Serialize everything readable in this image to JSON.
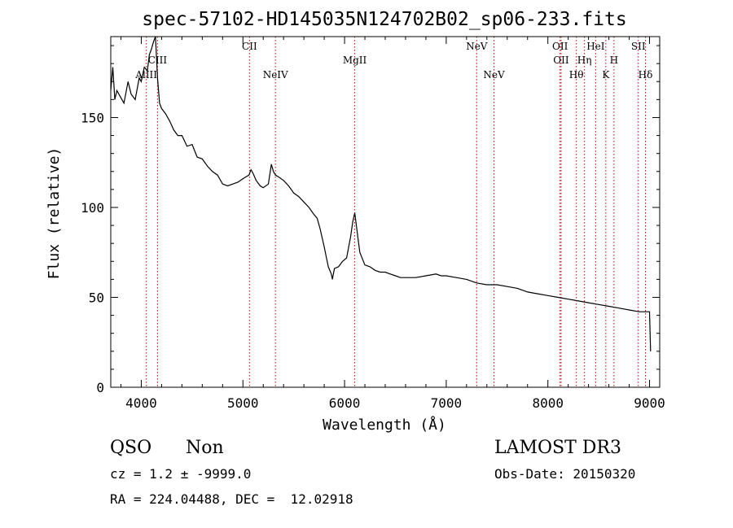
{
  "chart_data": {
    "type": "line",
    "title": "spec-57102-HD145035N124702B02_sp06-233.fits",
    "xlabel": "Wavelength (Å)",
    "ylabel": "Flux (relative)",
    "xlim": [
      3700,
      9100
    ],
    "ylim": [
      0,
      195
    ],
    "x_ticks": [
      4000,
      5000,
      6000,
      7000,
      8000,
      9000
    ],
    "x_tick_labels": [
      "4000",
      "5000",
      "6000",
      "7000",
      "8000",
      "9000"
    ],
    "y_ticks": [
      0,
      50,
      100,
      150
    ],
    "y_tick_labels": [
      "0",
      "50",
      "100",
      "150"
    ],
    "grid": false,
    "series": [
      {
        "name": "spectrum",
        "x": [
          3700,
          3720,
          3740,
          3760,
          3790,
          3830,
          3870,
          3900,
          3940,
          3980,
          4000,
          4030,
          4060,
          4080,
          4100,
          4120,
          4140,
          4160,
          4180,
          4200,
          4240,
          4280,
          4320,
          4360,
          4400,
          4450,
          4500,
          4550,
          4600,
          4650,
          4700,
          4750,
          4800,
          4850,
          4900,
          4950,
          5000,
          5030,
          5060,
          5080,
          5100,
          5130,
          5170,
          5200,
          5250,
          5280,
          5300,
          5320,
          5350,
          5400,
          5450,
          5500,
          5550,
          5600,
          5650,
          5700,
          5730,
          5760,
          5800,
          5840,
          5870,
          5880,
          5900,
          5940,
          5980,
          6020,
          6060,
          6080,
          6100,
          6120,
          6150,
          6200,
          6250,
          6300,
          6350,
          6400,
          6450,
          6500,
          6550,
          6600,
          6700,
          6800,
          6900,
          6950,
          7000,
          7100,
          7200,
          7300,
          7400,
          7500,
          7600,
          7700,
          7800,
          7900,
          8000,
          8100,
          8200,
          8300,
          8400,
          8500,
          8600,
          8700,
          8800,
          8900,
          8950,
          9000,
          9010
        ],
        "y": [
          165,
          178,
          160,
          165,
          162,
          158,
          170,
          163,
          160,
          172,
          170,
          178,
          176,
          185,
          188,
          192,
          195,
          172,
          158,
          155,
          152,
          148,
          143,
          140,
          140,
          134,
          135,
          128,
          127,
          123,
          120,
          118,
          113,
          112,
          113,
          114,
          116,
          117,
          118,
          121,
          119,
          115,
          112,
          111,
          113,
          124,
          120,
          118,
          117,
          115,
          112,
          108,
          106,
          103,
          100,
          96,
          94,
          88,
          78,
          67,
          63,
          60,
          66,
          67,
          70,
          72,
          84,
          92,
          97,
          88,
          75,
          68,
          67,
          65,
          64,
          64,
          63,
          62,
          61,
          61,
          61,
          62,
          63,
          62,
          62,
          61,
          60,
          58,
          57,
          57,
          56,
          55,
          53,
          52,
          51,
          50,
          49,
          48,
          47,
          46,
          45,
          44,
          43,
          42,
          42,
          42,
          20
        ]
      }
    ],
    "emission_lines": [
      {
        "label": "AlIII",
        "x": 4050,
        "row": 3
      },
      {
        "label": "CIII",
        "x": 4160,
        "row": 2
      },
      {
        "label": "CII",
        "x": 5065,
        "row": 1
      },
      {
        "label": "NeIV",
        "x": 5320,
        "row": 3
      },
      {
        "label": "MgII",
        "x": 6100,
        "row": 2
      },
      {
        "label": "NeV",
        "x": 7300,
        "row": 1
      },
      {
        "label": "NeV",
        "x": 7470,
        "row": 3
      },
      {
        "label": "OII",
        "x": 8120,
        "row": 1
      },
      {
        "label": "OII",
        "x": 8130,
        "row": 2
      },
      {
        "label": "Hθ",
        "x": 8280,
        "row": 3
      },
      {
        "label": "Hη",
        "x": 8360,
        "row": 2
      },
      {
        "label": "HeI",
        "x": 8470,
        "row": 1
      },
      {
        "label": "K",
        "x": 8570,
        "row": 3
      },
      {
        "label": "H",
        "x": 8650,
        "row": 2
      },
      {
        "label": "SII",
        "x": 8890,
        "row": 1
      },
      {
        "label": "Hδ",
        "x": 8960,
        "row": 3
      }
    ]
  },
  "info": {
    "class": "QSO",
    "subclass": "Non",
    "cz": "cz = 1.2 ± -9999.0",
    "coords": "RA = 224.04488, DEC =  12.02918",
    "survey": "LAMOST DR3",
    "obs_date": "Obs-Date: 20150320"
  },
  "colors": {
    "line": "#000000",
    "marker": "#cc0000",
    "axis": "#000000"
  }
}
